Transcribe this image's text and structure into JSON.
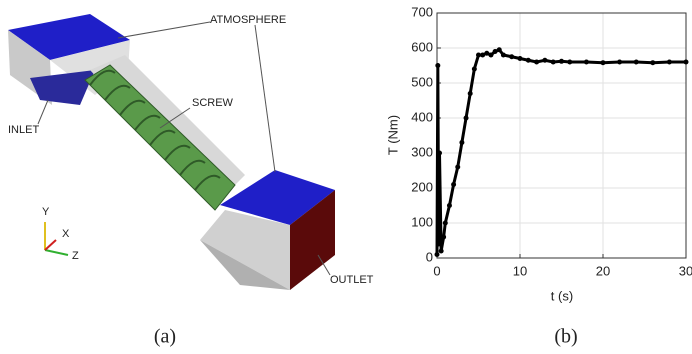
{
  "diagram": {
    "labels": {
      "atmosphere": "ATMOSPHERE",
      "screw": "SCREW",
      "inlet": "INLET",
      "outlet": "OUTLET"
    },
    "axes": {
      "y": "Y",
      "x": "X",
      "z": "Z"
    }
  },
  "captions": [
    "(a)",
    "(b)"
  ],
  "chart_data": {
    "type": "line",
    "xlabel": "t (s)",
    "ylabel": "T (Nm)",
    "color": "#000000",
    "grid": true,
    "x": [
      0,
      0.1,
      0.2,
      0.3,
      0.5,
      0.8,
      1,
      1.5,
      2,
      2.5,
      3,
      3.5,
      4,
      4.5,
      5,
      5.5,
      6,
      6.5,
      7,
      7.5,
      8,
      9,
      10,
      11,
      12,
      13,
      14,
      15,
      16,
      18,
      20,
      22,
      24,
      26,
      28,
      30
    ],
    "y": [
      10,
      550,
      40,
      300,
      20,
      60,
      100,
      150,
      210,
      260,
      330,
      400,
      470,
      540,
      580,
      580,
      585,
      580,
      590,
      595,
      580,
      575,
      570,
      565,
      560,
      565,
      560,
      562,
      560,
      560,
      558,
      560,
      560,
      558,
      560,
      560
    ],
    "xlim": [
      0,
      30
    ],
    "xticks": [
      0,
      10,
      20,
      30
    ],
    "ylim": [
      0,
      700
    ],
    "yticks": [
      0,
      100,
      200,
      300,
      400,
      500,
      600,
      700
    ]
  }
}
